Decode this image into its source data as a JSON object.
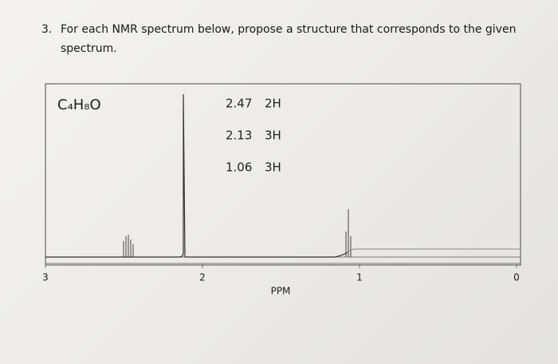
{
  "question": {
    "number": "3.",
    "text_line1": "For each NMR spectrum below, propose a structure that corresponds to the given",
    "text_line2": "spectrum."
  },
  "spectrum": {
    "formula": "C₄H₈O",
    "peaks": [
      {
        "shift": 2.47,
        "integration": "2H"
      },
      {
        "shift": 2.13,
        "integration": "3H"
      },
      {
        "shift": 1.06,
        "integration": "3H"
      }
    ],
    "axis_ticks": [
      3,
      2,
      1,
      0
    ],
    "axis_label": "PPM"
  }
}
